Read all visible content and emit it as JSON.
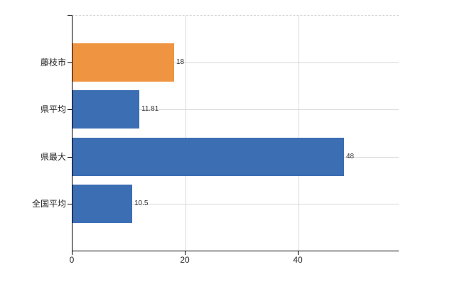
{
  "chart_data": {
    "type": "bar",
    "orientation": "horizontal",
    "title": "",
    "xlabel": "",
    "ylabel": "",
    "categories": [
      "藤枝市",
      "県平均",
      "県最大",
      "全国平均"
    ],
    "values": [
      18,
      11.81,
      48,
      10.5
    ],
    "value_labels": [
      "18",
      "11.81",
      "48",
      "10.5"
    ],
    "bar_colors": [
      "#EF9441",
      "#3C6EB4",
      "#3C6EB4",
      "#3C6EB4"
    ],
    "x_ticks": [
      0,
      20,
      40
    ],
    "x_tick_labels": [
      "0",
      "20",
      "40"
    ],
    "xlim": [
      0,
      57.7
    ],
    "grid": true,
    "legend": null
  },
  "colors": {
    "highlight_bar": "#EF9441",
    "default_bar": "#3C6EB4",
    "gridline": "#d9d9d9",
    "axis": "#000000",
    "value_text": "#333333",
    "tick_text": "#222222",
    "background": "#ffffff"
  }
}
